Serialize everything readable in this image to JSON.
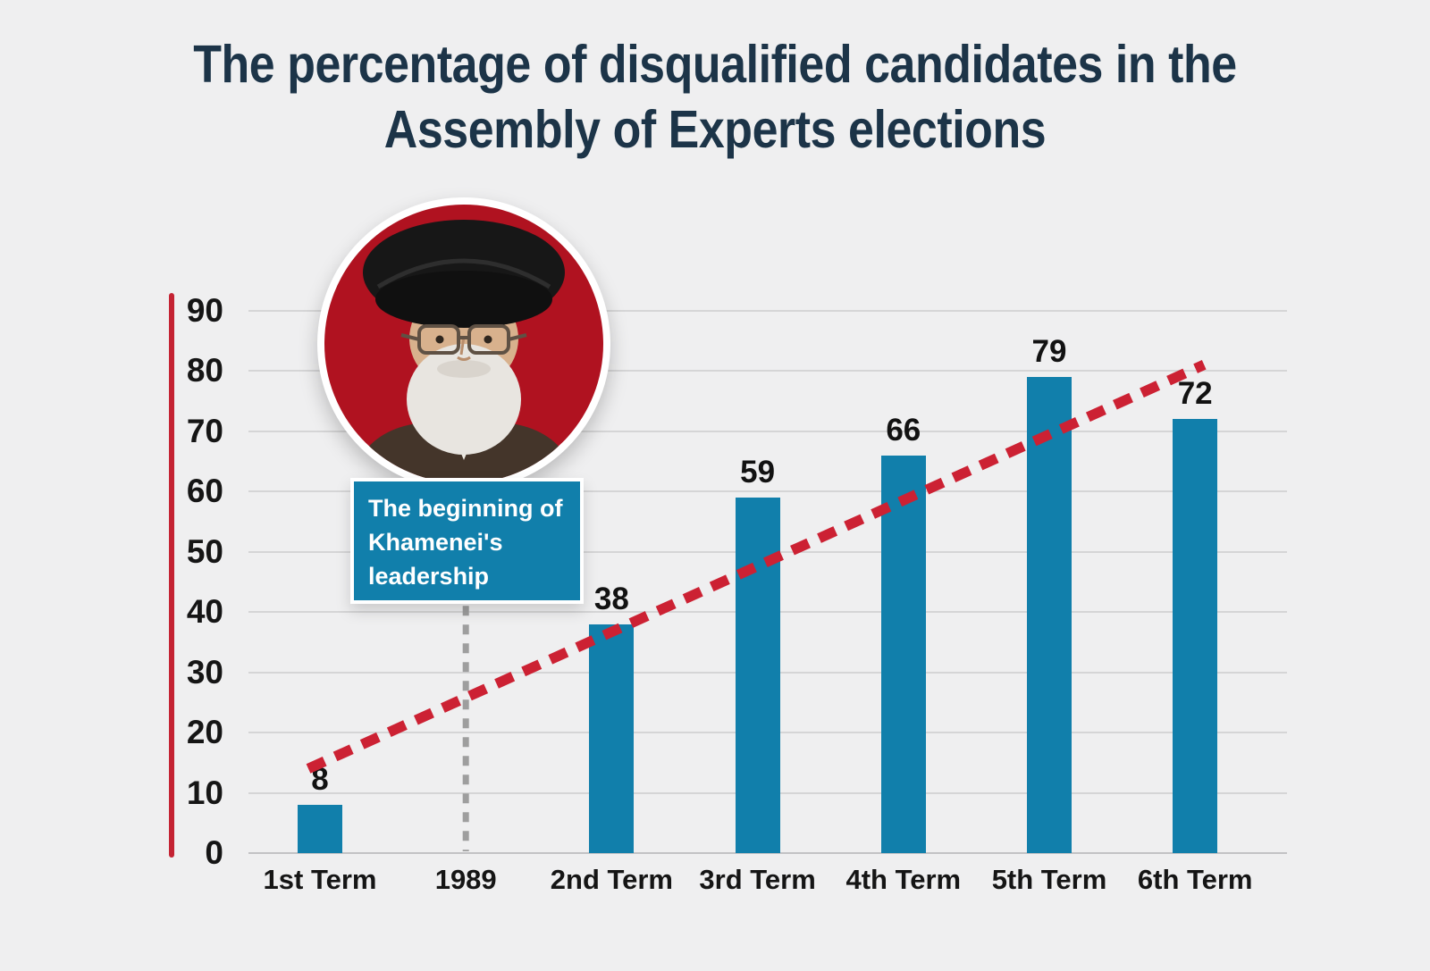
{
  "background_color": "#efeff0",
  "title": {
    "line1": "The percentage of disqualified candidates in the",
    "line2": "Assembly of Experts elections",
    "color": "#1c3448"
  },
  "annotation": {
    "full_text": "The beginning of Khamenei's leadership",
    "lines": [
      "The beginning of",
      "Khamenei's",
      "leadership"
    ],
    "box_color": "#117fab",
    "text_color": "#ffffff",
    "year_label": "1989"
  },
  "portrait": {
    "subject": "Khamenei portrait",
    "circle_color": "#b01220",
    "ring_color": "#ffffff",
    "turban_color": "#171717"
  },
  "axis": {
    "accent_line_color": "#c42333",
    "tick_label_color": "#151515"
  },
  "chart_data": {
    "type": "bar",
    "title": "The percentage of disqualified candidates in the Assembly of Experts elections",
    "categories": [
      "1st Term",
      "1989",
      "2nd Term",
      "3rd Term",
      "4th Term",
      "5th Term",
      "6th Term"
    ],
    "values": [
      8,
      null,
      38,
      59,
      66,
      79,
      72
    ],
    "xlabel": "",
    "ylabel": "",
    "ylim": [
      0,
      90
    ],
    "yticks": [
      0,
      10,
      20,
      30,
      40,
      50,
      60,
      70,
      80,
      90
    ],
    "grid": "horizontal",
    "legend": "none",
    "bar_color": "#117fab",
    "value_label_color": "#121212",
    "trend_line": {
      "style": "dashed",
      "color": "#cc2133",
      "start_value": 14,
      "end_value": 81
    },
    "year_divider": {
      "category": "1989",
      "category_index": 1,
      "style": "dashed",
      "color": "#9e9e9e",
      "top_value": 41
    }
  }
}
